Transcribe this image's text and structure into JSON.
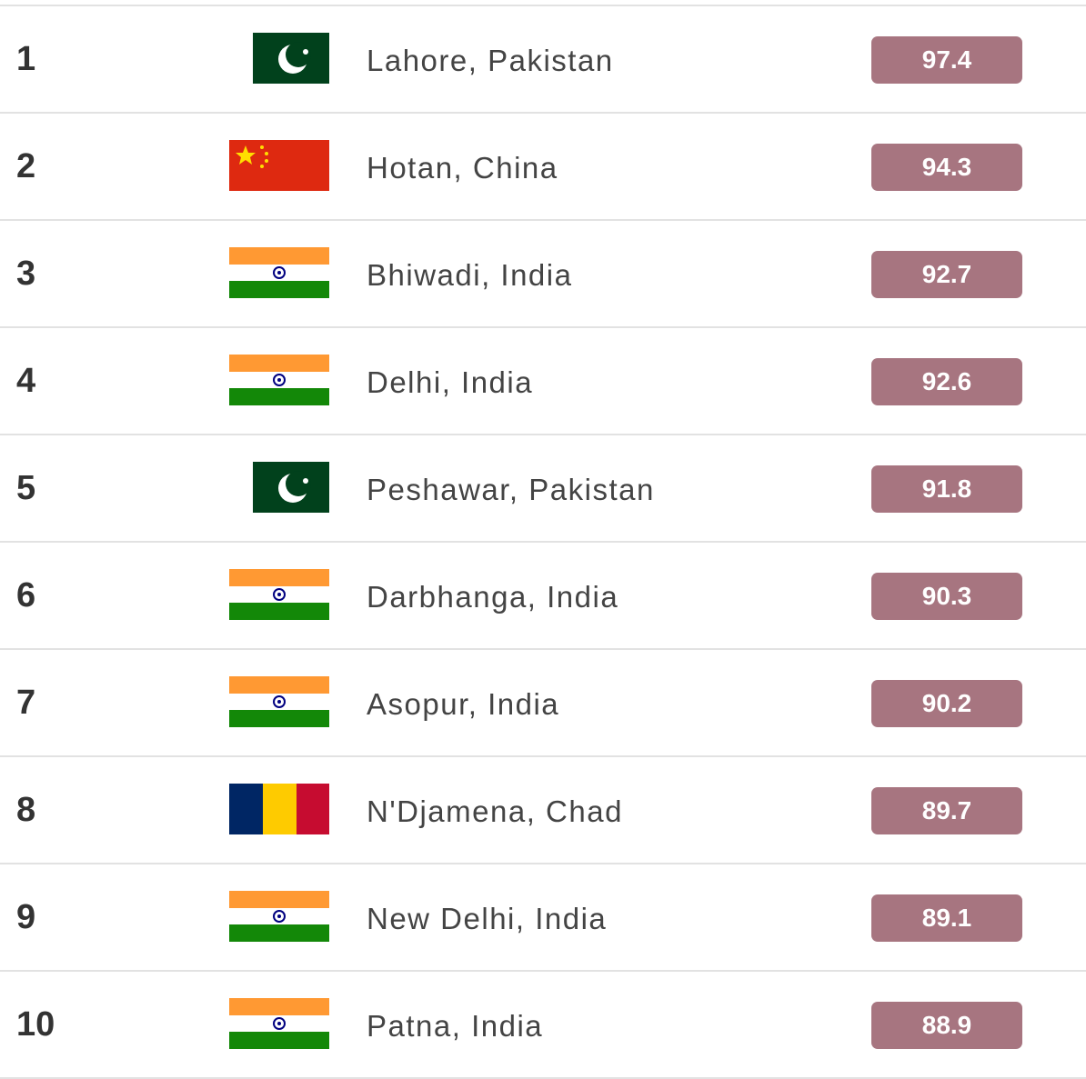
{
  "table": {
    "rows": [
      [
        "1",
        "Lahore, Pakistan",
        "97.4"
      ],
      [
        "2",
        "Hotan, China",
        "94.3"
      ],
      [
        "3",
        "Bhiwadi, India",
        "92.7"
      ],
      [
        "4",
        "Delhi, India",
        "92.6"
      ],
      [
        "5",
        "Peshawar, Pakistan",
        "91.8"
      ],
      [
        "6",
        "Darbhanga, India",
        "90.3"
      ],
      [
        "7",
        "Asopur, India",
        "90.2"
      ],
      [
        "8",
        "N'Djamena, Chad",
        "89.7"
      ],
      [
        "9",
        "New Delhi, India",
        "89.1"
      ],
      [
        "10",
        "Patna, India",
        "88.9"
      ]
    ]
  }
}
